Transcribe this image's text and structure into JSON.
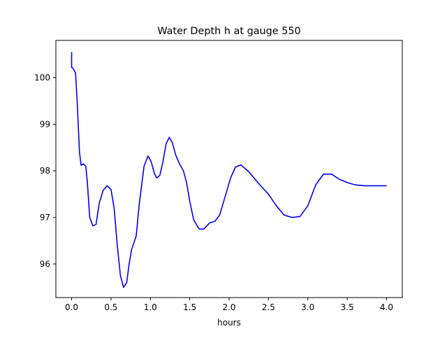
{
  "chart_data": {
    "type": "line",
    "title": "Water Depth h at gauge 550",
    "xlabel": "hours",
    "ylabel": "",
    "xlim": [
      -0.2,
      4.2
    ],
    "ylim": [
      95.28,
      100.8
    ],
    "x_ticks": [
      0.0,
      0.5,
      1.0,
      1.5,
      2.0,
      2.5,
      3.0,
      3.5,
      4.0
    ],
    "x_tick_labels": [
      "0.0",
      "0.5",
      "1.0",
      "1.5",
      "2.0",
      "2.5",
      "3.0",
      "3.5",
      "4.0"
    ],
    "y_ticks": [
      96,
      97,
      98,
      99,
      100
    ],
    "y_tick_labels": [
      "96",
      "97",
      "98",
      "99",
      "100"
    ],
    "grid": false,
    "legend": "none",
    "series": [
      {
        "color": "#0000ff",
        "x": [
          0.0,
          0.0,
          0.02,
          0.05,
          0.07,
          0.1,
          0.12,
          0.15,
          0.18,
          0.2,
          0.23,
          0.27,
          0.31,
          0.35,
          0.4,
          0.45,
          0.5,
          0.54,
          0.58,
          0.62,
          0.66,
          0.7,
          0.73,
          0.76,
          0.79,
          0.82,
          0.86,
          0.92,
          0.97,
          1.01,
          1.05,
          1.08,
          1.12,
          1.16,
          1.2,
          1.24,
          1.28,
          1.32,
          1.37,
          1.42,
          1.46,
          1.5,
          1.55,
          1.62,
          1.68,
          1.75,
          1.82,
          1.88,
          1.95,
          2.02,
          2.08,
          2.15,
          2.25,
          2.38,
          2.5,
          2.6,
          2.7,
          2.8,
          2.9,
          3.0,
          3.1,
          3.2,
          3.3,
          3.4,
          3.5,
          3.6,
          3.66,
          3.72,
          3.8,
          3.88,
          3.94,
          4.0
        ],
        "y": [
          100.55,
          100.22,
          100.2,
          100.1,
          99.5,
          98.4,
          98.12,
          98.15,
          98.1,
          97.75,
          97.0,
          96.82,
          96.85,
          97.3,
          97.58,
          97.68,
          97.6,
          97.2,
          96.4,
          95.75,
          95.5,
          95.6,
          96.0,
          96.3,
          96.45,
          96.6,
          97.3,
          98.1,
          98.32,
          98.2,
          97.95,
          97.85,
          97.9,
          98.2,
          98.58,
          98.72,
          98.6,
          98.35,
          98.15,
          98.0,
          97.75,
          97.35,
          96.95,
          96.75,
          96.75,
          96.88,
          96.92,
          97.05,
          97.45,
          97.85,
          98.08,
          98.13,
          97.98,
          97.72,
          97.5,
          97.25,
          97.05,
          97.0,
          97.02,
          97.25,
          97.7,
          97.93,
          97.93,
          97.82,
          97.75,
          97.7,
          97.69,
          97.68,
          97.68,
          97.68,
          97.68,
          97.68
        ]
      }
    ]
  }
}
